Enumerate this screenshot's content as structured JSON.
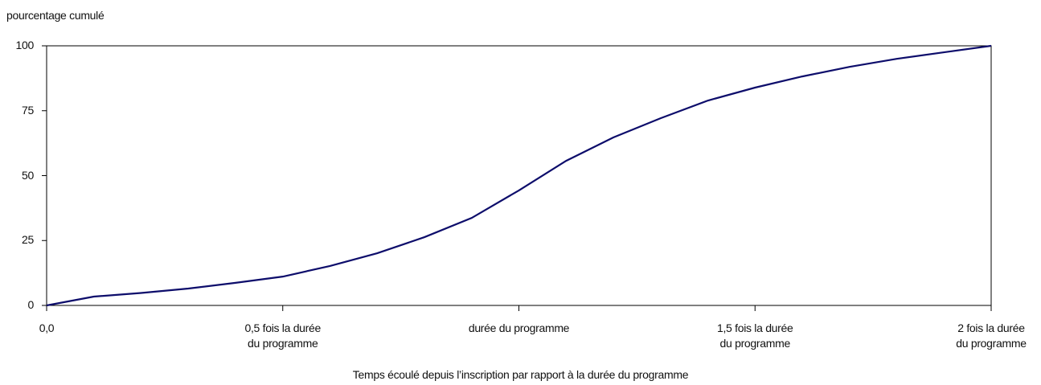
{
  "chart_data": {
    "type": "line",
    "y_axis_label": "pourcentage cumulé",
    "x_axis_label": "Temps écoulé depuis l’inscription par rapport à la durée du programme",
    "x": [
      0,
      0.1,
      0.2,
      0.3,
      0.4,
      0.5,
      0.6,
      0.7,
      0.8,
      0.9,
      1.0,
      1.1,
      1.2,
      1.3,
      1.4,
      1.5,
      1.6,
      1.7,
      1.8,
      1.9,
      2.0
    ],
    "series": [
      {
        "color": "#0d0d6b",
        "values": [
          0,
          3.4,
          4.8,
          6.5,
          8.7,
          11.1,
          15.2,
          20.1,
          26.3,
          33.7,
          44.3,
          55.7,
          64.7,
          72.1,
          78.9,
          83.9,
          88.2,
          91.9,
          95,
          97.5,
          100
        ]
      }
    ],
    "xlim": [
      0,
      2
    ],
    "xticks": [
      {
        "value": 0,
        "label": "0,0"
      },
      {
        "value": 0.5,
        "label": "0,5 fois la durée\ndu programme"
      },
      {
        "value": 1,
        "label": "durée du programme"
      },
      {
        "value": 1.5,
        "label": "1,5 fois la durée\ndu programme"
      },
      {
        "value": 2,
        "label": "2 fois la durée\ndu programme"
      }
    ],
    "ylim": [
      0,
      100
    ],
    "yticks": [
      0,
      25,
      50,
      75,
      100
    ],
    "grid": false
  }
}
